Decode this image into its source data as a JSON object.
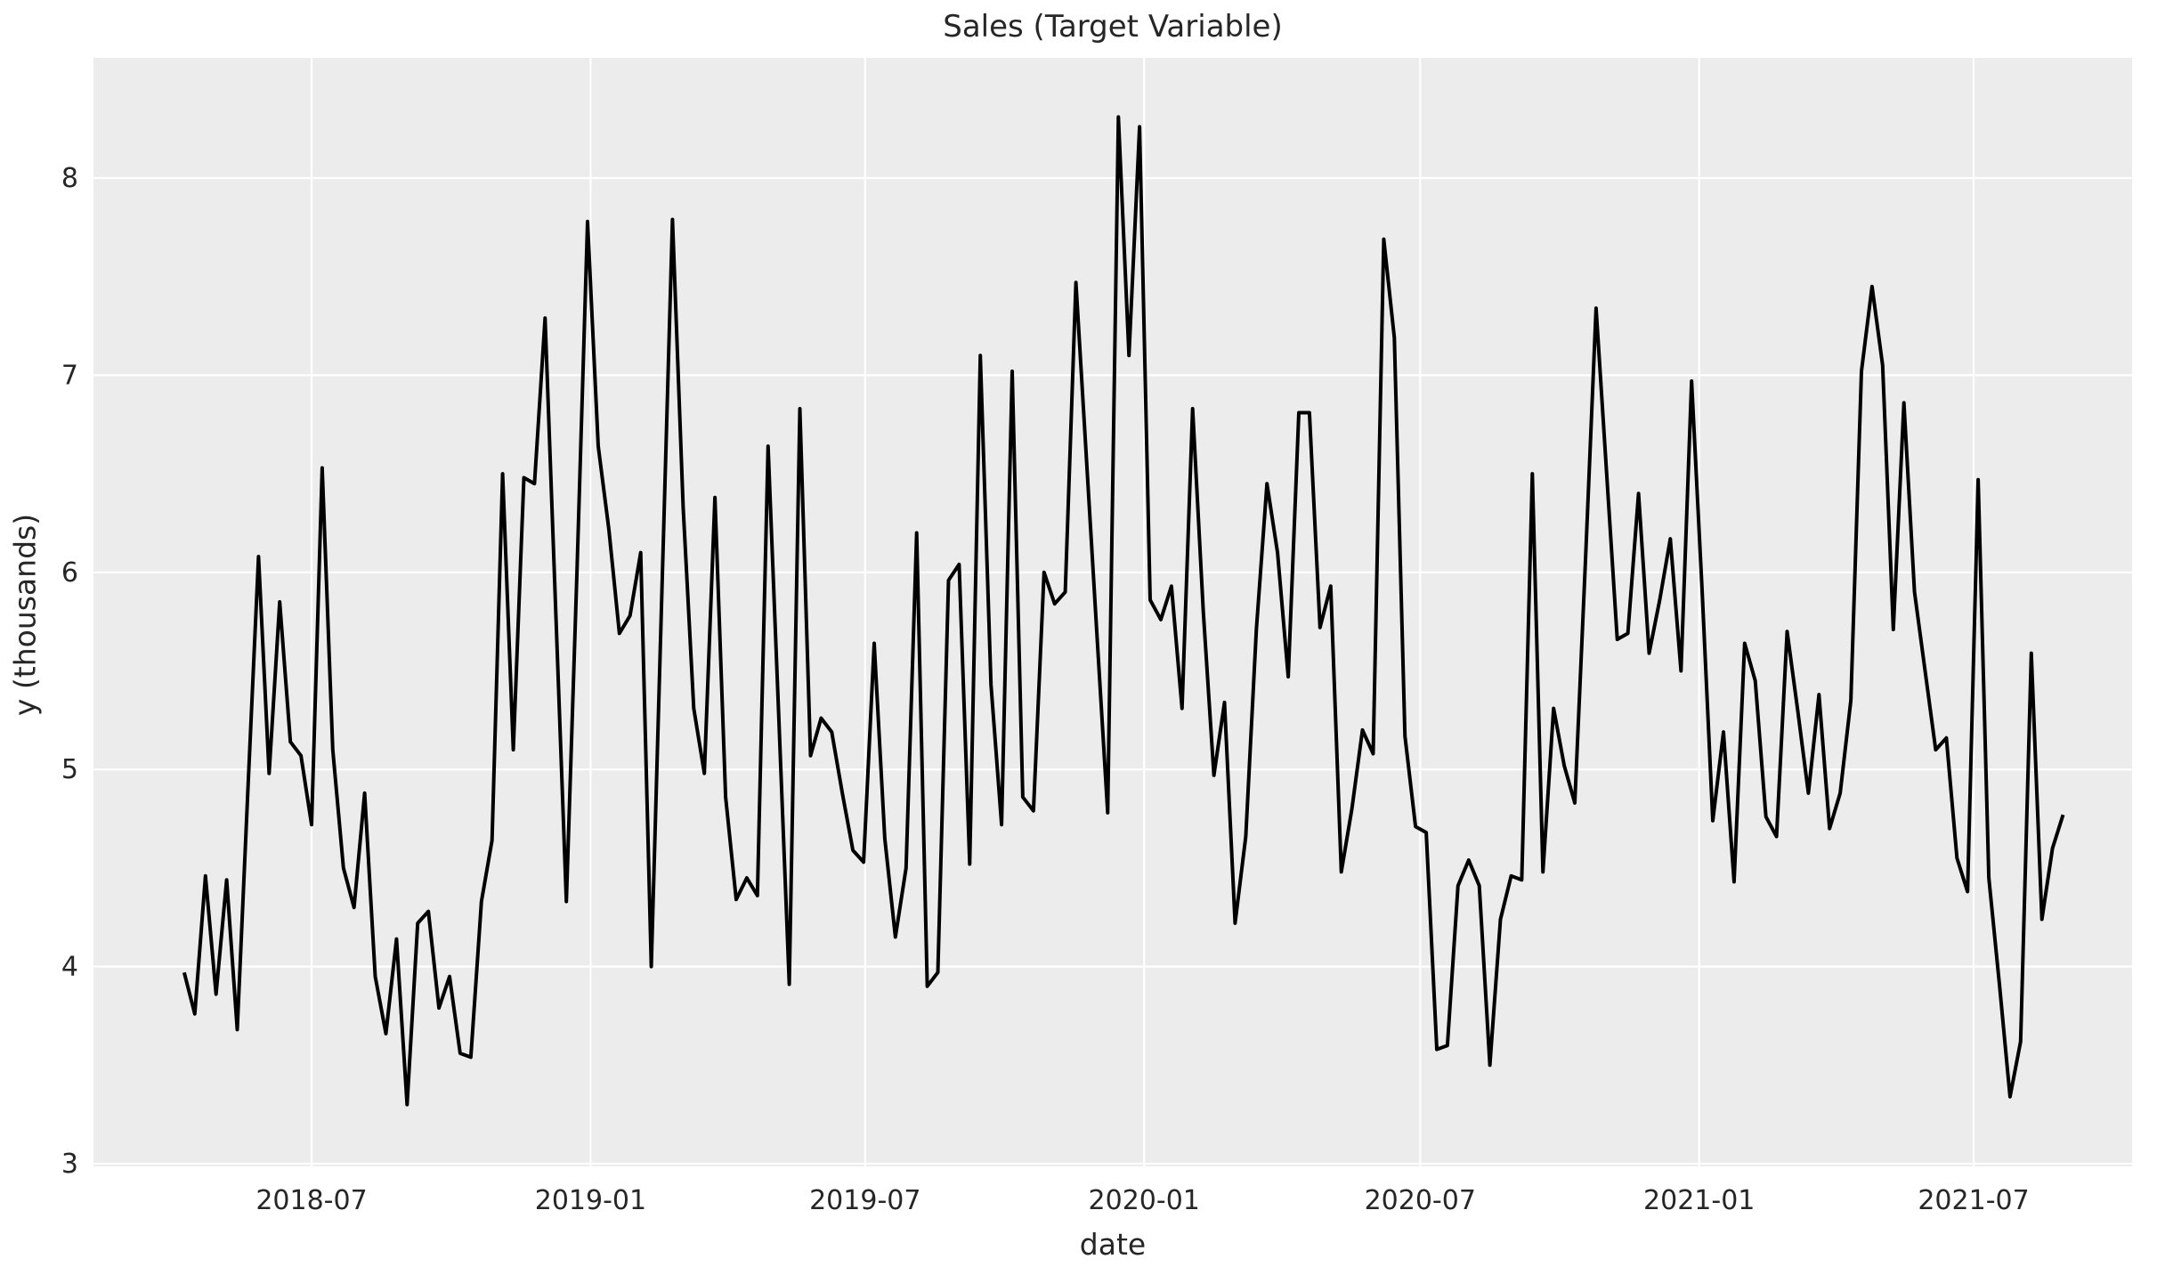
{
  "chart_data": {
    "type": "line",
    "title": "Sales (Target Variable)",
    "xlabel": "date",
    "ylabel": "y (thousands)",
    "series": [
      {
        "name": "Sales",
        "start_date": "2018-04-08",
        "freq_days": 7,
        "values": [
          3.97,
          3.76,
          4.46,
          3.86,
          4.44,
          3.68,
          4.9,
          6.08,
          4.98,
          5.85,
          5.14,
          5.07,
          4.72,
          6.53,
          5.1,
          4.5,
          4.3,
          4.88,
          3.95,
          3.66,
          4.14,
          3.3,
          4.22,
          4.28,
          3.79,
          3.95,
          3.56,
          3.54,
          4.33,
          4.64,
          6.5,
          5.1,
          6.48,
          6.45,
          7.29,
          5.8,
          4.33,
          6.0,
          7.78,
          6.64,
          6.22,
          5.69,
          5.78,
          6.1,
          4.0,
          5.9,
          7.79,
          6.33,
          5.31,
          4.98,
          6.38,
          4.86,
          4.34,
          4.45,
          4.36,
          6.64,
          5.28,
          3.91,
          6.83,
          5.07,
          5.26,
          5.19,
          4.88,
          4.59,
          4.53,
          5.64,
          4.65,
          4.15,
          4.5,
          6.2,
          3.9,
          3.97,
          5.96,
          6.04,
          4.52,
          7.1,
          5.43,
          4.72,
          7.02,
          4.86,
          4.79,
          6.0,
          5.84,
          5.9,
          7.47,
          6.57,
          5.67,
          4.78,
          8.31,
          7.1,
          8.26,
          5.86,
          5.76,
          5.93,
          5.31,
          6.83,
          5.8,
          4.97,
          5.34,
          4.22,
          4.66,
          5.71,
          6.45,
          6.1,
          5.47,
          6.81,
          6.81,
          5.72,
          5.93,
          4.48,
          4.8,
          5.2,
          5.08,
          7.69,
          7.19,
          5.17,
          4.71,
          4.68,
          3.58,
          3.6,
          4.41,
          4.54,
          4.41,
          3.5,
          4.24,
          4.46,
          4.44,
          6.5,
          4.48,
          5.31,
          5.02,
          4.83,
          6.05,
          7.34,
          6.5,
          5.66,
          5.69,
          6.4,
          5.59,
          5.86,
          6.17,
          5.5,
          6.97,
          5.9,
          4.74,
          5.19,
          4.43,
          5.64,
          5.45,
          4.76,
          4.66,
          5.7,
          5.3,
          4.88,
          5.38,
          4.7,
          4.88,
          5.35,
          7.02,
          7.45,
          7.05,
          5.71,
          6.86,
          5.9,
          5.5,
          5.1,
          5.16,
          4.55,
          4.38,
          6.47,
          4.45,
          3.91,
          3.34,
          3.62,
          5.59,
          4.24,
          4.6,
          4.77
        ]
      }
    ],
    "yticks": [
      3,
      4,
      5,
      6,
      7,
      8
    ],
    "xticks": [
      {
        "label": "2018-07",
        "date": "2018-07-01"
      },
      {
        "label": "2019-01",
        "date": "2019-01-01"
      },
      {
        "label": "2019-07",
        "date": "2019-07-01"
      },
      {
        "label": "2020-01",
        "date": "2020-01-01"
      },
      {
        "label": "2020-07",
        "date": "2020-07-01"
      },
      {
        "label": "2021-01",
        "date": "2021-01-01"
      },
      {
        "label": "2021-07",
        "date": "2021-07-01"
      }
    ],
    "ylim": [
      2.96,
      8.62
    ],
    "grid": true,
    "legend_position": "none",
    "colors": {
      "figure_background": "#FFFFFF",
      "axes_background": "#ECECEC",
      "gridline": "#FFFFFF",
      "line": "#000000",
      "text": "#262626"
    }
  }
}
